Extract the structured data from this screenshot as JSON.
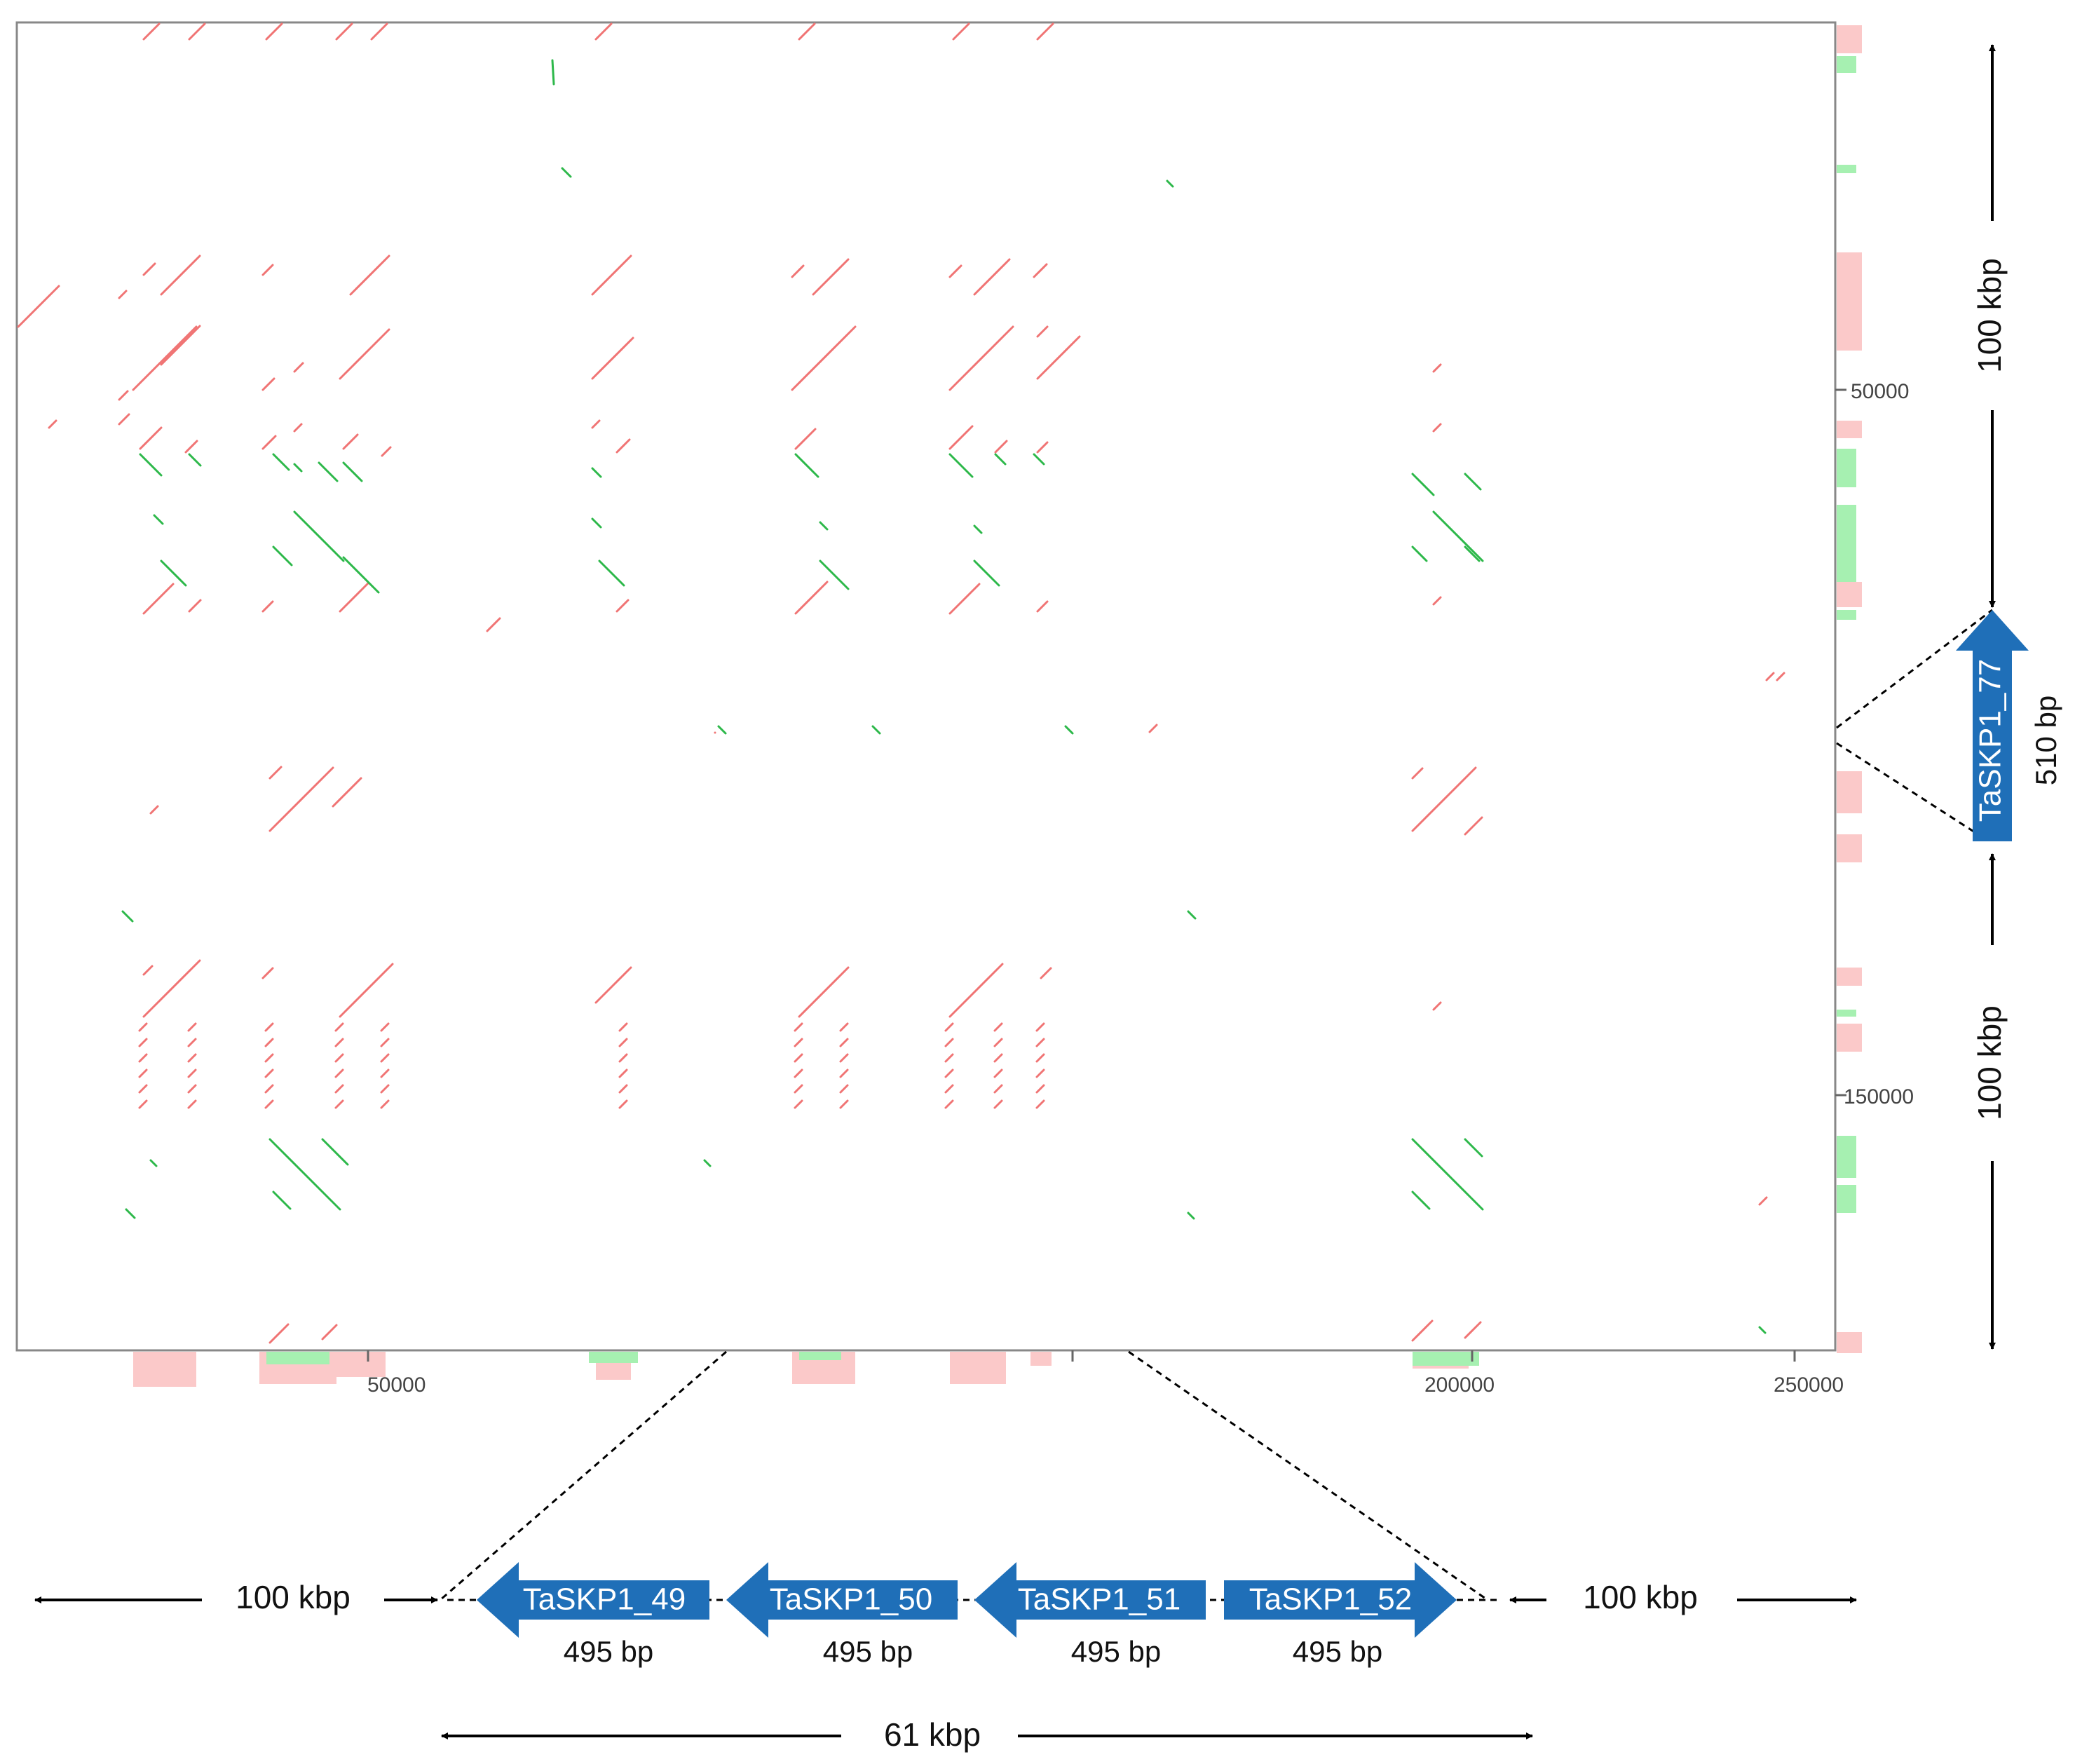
{
  "colors": {
    "forward": "#f07474",
    "reverse": "#2db84a",
    "forward_hist": "#fbc9c9",
    "reverse_hist": "#a6f0b1",
    "gene": "#1f6fb8",
    "axis": "#888888"
  },
  "plot": {
    "x_ticks": [
      "50000",
      "200000",
      "250000"
    ],
    "y_ticks": [
      "50000",
      "150000"
    ]
  },
  "vertical_annotation": {
    "top_span": "100 kbp",
    "gene": {
      "name": "TaSKP1_77",
      "size": "510 bp"
    },
    "bottom_span": "100 kbp"
  },
  "horizontal_annotation": {
    "left_span": "100 kbp",
    "right_span": "100 kbp",
    "cluster_span": "61 kbp",
    "genes": [
      {
        "name": "TaSKP1_49",
        "size": "495 bp"
      },
      {
        "name": "TaSKP1_50",
        "size": "495 bp"
      },
      {
        "name": "TaSKP1_51",
        "size": "495 bp"
      },
      {
        "name": "TaSKP1_52",
        "size": "495 bp"
      }
    ]
  }
}
